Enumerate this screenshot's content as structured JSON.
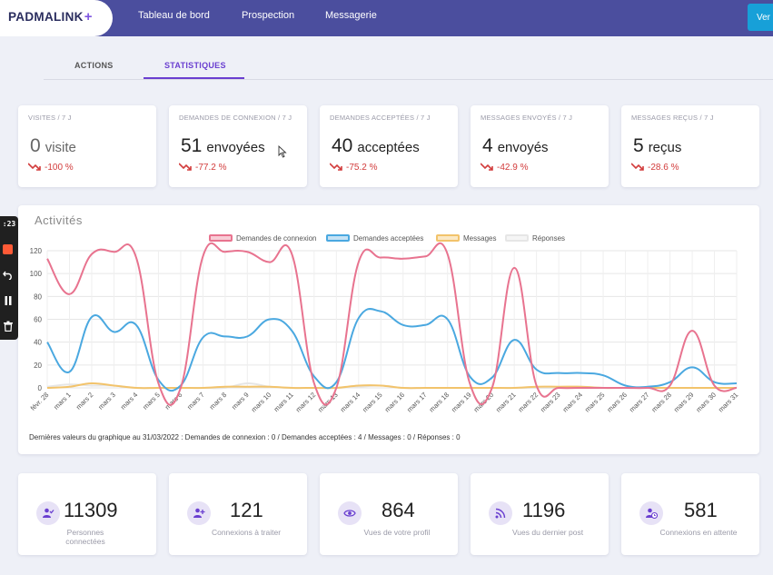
{
  "app": {
    "logo": "PADMALINK",
    "logo_plus": "+"
  },
  "nav": {
    "links": [
      "Tableau de bord",
      "Prospection",
      "Messagerie"
    ],
    "cta_label": "Ver"
  },
  "tabs": [
    "ACTIONS",
    "STATISTIQUES"
  ],
  "kpis": [
    {
      "label": "VISITES / 7 J",
      "value": "0",
      "unit": "visite",
      "change": "-100 %"
    },
    {
      "label": "DEMANDES DE CONNEXION / 7 J",
      "value": "51",
      "unit": "envoyées",
      "change": "-77.2 %"
    },
    {
      "label": "DEMANDES ACCEPTÉES / 7 J",
      "value": "40",
      "unit": "acceptées",
      "change": "-75.2 %"
    },
    {
      "label": "MESSAGES ENVOYÉS / 7 J",
      "value": "4",
      "unit": "envoyés",
      "change": "-42.9 %"
    },
    {
      "label": "MESSAGES REÇUS / 7 J",
      "value": "5",
      "unit": "reçus",
      "change": "-28.6 %"
    }
  ],
  "recorder": {
    "time": ":23"
  },
  "chart": {
    "title": "Activités",
    "footer": "Dernières valeurs du graphique au 31/03/2022 : Demandes de connexion : 0 / Demandes acceptées : 4 / Messages : 0 / Réponses : 0"
  },
  "chart_data": {
    "type": "line",
    "title": "Activités",
    "categories": [
      "févr. 28",
      "mars 1",
      "mars 2",
      "mars 3",
      "mars 4",
      "mars 5",
      "mars 6",
      "mars 7",
      "mars 8",
      "mars 9",
      "mars 10",
      "mars 11",
      "mars 12",
      "mars 13",
      "mars 14",
      "mars 15",
      "mars 16",
      "mars 17",
      "mars 18",
      "mars 19",
      "mars 20",
      "mars 21",
      "mars 22",
      "mars 23",
      "mars 24",
      "mars 25",
      "mars 26",
      "mars 27",
      "mars 28",
      "mars 29",
      "mars 30",
      "mars 31"
    ],
    "ylim": [
      0,
      120
    ],
    "yticks": [
      0,
      20,
      40,
      60,
      80,
      100,
      120
    ],
    "legend_position": "top",
    "grid": true,
    "series": [
      {
        "name": "Demandes de connexion",
        "color": "#e8738f",
        "values": [
          113,
          82,
          117,
          119,
          114,
          4,
          0,
          115,
          119,
          119,
          110,
          117,
          4,
          0,
          110,
          114,
          113,
          115,
          117,
          4,
          0,
          105,
          2,
          0,
          0,
          0,
          0,
          0,
          2,
          50,
          2,
          0
        ]
      },
      {
        "name": "Demandes acceptées",
        "color": "#4aa8e0",
        "values": [
          40,
          14,
          62,
          49,
          55,
          7,
          2,
          44,
          45,
          45,
          60,
          50,
          10,
          5,
          61,
          67,
          55,
          55,
          60,
          10,
          9,
          42,
          16,
          13,
          13,
          11,
          2,
          1,
          5,
          18,
          5,
          4
        ]
      },
      {
        "name": "Messages",
        "color": "#f2c36b",
        "values": [
          0,
          1,
          4,
          2,
          0,
          0,
          0,
          0,
          1,
          1,
          1,
          0,
          0,
          0,
          2,
          2,
          0,
          0,
          0,
          0,
          0,
          0,
          1,
          1,
          1,
          0,
          0,
          0,
          0,
          0,
          0,
          0
        ]
      },
      {
        "name": "Réponses",
        "color": "#e6e6e6",
        "values": [
          1,
          3,
          2,
          2,
          0,
          0,
          0,
          0,
          0,
          4,
          1,
          0,
          0,
          0,
          1,
          2,
          0,
          0,
          0,
          0,
          0,
          0,
          0,
          0,
          1,
          0,
          0,
          0,
          0,
          0,
          0,
          0
        ]
      }
    ]
  },
  "stats": [
    {
      "value": "11309",
      "label": "Personnes connectées",
      "icon": "user-check-icon"
    },
    {
      "value": "121",
      "label": "Connexions à traiter",
      "icon": "user-plus-icon"
    },
    {
      "value": "864",
      "label": "Vues de votre profil",
      "icon": "eye-icon"
    },
    {
      "value": "1196",
      "label": "Vues du dernier post",
      "icon": "rss-icon"
    },
    {
      "value": "581",
      "label": "Connexions en attente",
      "icon": "user-clock-icon"
    }
  ]
}
